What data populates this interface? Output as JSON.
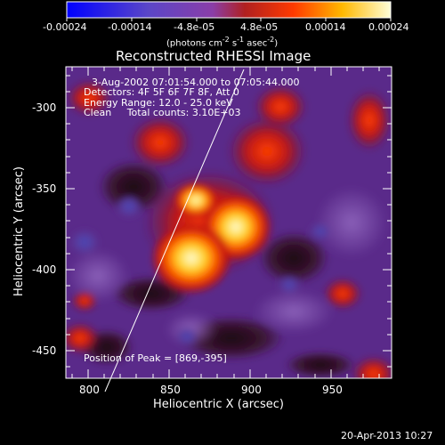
{
  "colorbar": {
    "ticks": [
      "-0.00024",
      "-0.00014",
      "-4.8e-05",
      "4.8e-05",
      "0.00014",
      "0.00024"
    ],
    "unit_parts": [
      "(photons cm",
      "-2",
      " s",
      "-1",
      " asec",
      "-2",
      ")"
    ]
  },
  "title": "Reconstructed RHESSI Image",
  "info": {
    "time_range": "3-Aug-2002 07:01:54.000 to 07:05:44.000",
    "detectors": "Detectors: 4F 5F 6F 7F 8F, Att 0",
    "energy": "Energy Range: 12.0 - 25.0 keV",
    "clean": "Clean     Total counts: 3.10E+03"
  },
  "peak": "Position of Peak = [869,-395]",
  "axes": {
    "xlabel": "Heliocentric X (arcsec)",
    "ylabel": "Heliocentric Y (arcsec)",
    "xticks": [
      "800",
      "850",
      "900",
      "950"
    ],
    "yticks": [
      "-300",
      "-350",
      "-400",
      "-450"
    ]
  },
  "footer_date": "20-Apr-2013 10:27",
  "colors": {
    "background": "#000000",
    "diffuse": "#5a2a8a",
    "hot_core": "#ffffc8",
    "limb_line": "#ffffff"
  }
}
